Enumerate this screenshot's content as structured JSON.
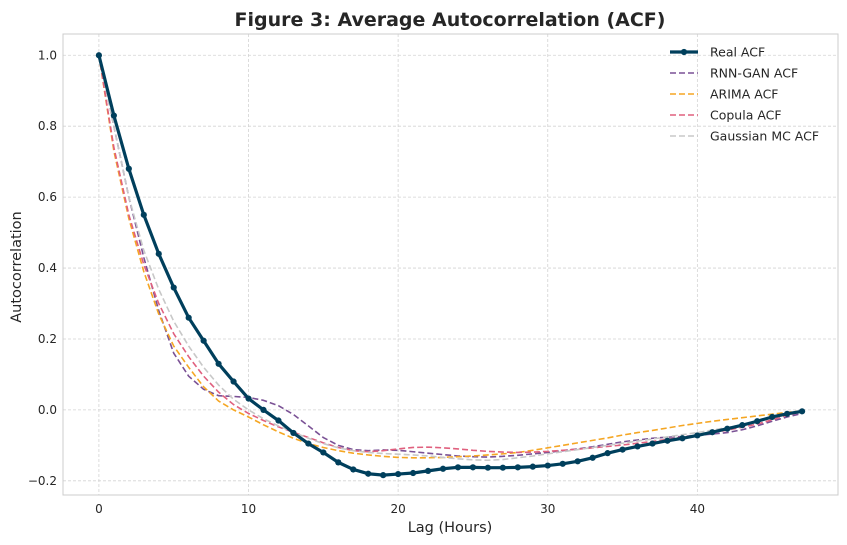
{
  "chart_data": {
    "type": "line",
    "title": "Figure 3: Average Autocorrelation (ACF)",
    "xlabel": "Lag (Hours)",
    "ylabel": "Autocorrelation",
    "xlim": [
      -2.4,
      49.4
    ],
    "ylim": [
      -0.24,
      1.06
    ],
    "xticks": [
      0,
      10,
      20,
      30,
      40
    ],
    "yticks": [
      -0.2,
      0.0,
      0.2,
      0.4,
      0.6,
      0.8,
      1.0
    ],
    "ytick_labels": [
      "−0.2",
      "0.0",
      "0.2",
      "0.4",
      "0.6",
      "0.8",
      "1.0"
    ],
    "grid": true,
    "legend_position": "top-right",
    "x": [
      0,
      1,
      2,
      3,
      4,
      5,
      6,
      7,
      8,
      9,
      10,
      11,
      12,
      13,
      14,
      15,
      16,
      17,
      18,
      19,
      20,
      21,
      22,
      23,
      24,
      25,
      26,
      27,
      28,
      29,
      30,
      31,
      32,
      33,
      34,
      35,
      36,
      37,
      38,
      39,
      40,
      41,
      42,
      43,
      44,
      45,
      46,
      47
    ],
    "series": [
      {
        "name": "Real ACF",
        "color": "#003f5c",
        "style": "solid-markers",
        "values": [
          1.0,
          0.83,
          0.68,
          0.55,
          0.44,
          0.345,
          0.26,
          0.195,
          0.13,
          0.08,
          0.032,
          0.0,
          -0.03,
          -0.065,
          -0.095,
          -0.12,
          -0.148,
          -0.168,
          -0.18,
          -0.184,
          -0.181,
          -0.178,
          -0.172,
          -0.166,
          -0.162,
          -0.162,
          -0.163,
          -0.163,
          -0.162,
          -0.16,
          -0.157,
          -0.152,
          -0.145,
          -0.135,
          -0.122,
          -0.112,
          -0.103,
          -0.095,
          -0.087,
          -0.08,
          -0.072,
          -0.063,
          -0.053,
          -0.043,
          -0.032,
          -0.02,
          -0.011,
          -0.004
        ]
      },
      {
        "name": "RNN-GAN ACF",
        "color": "#7a5195",
        "style": "dashed",
        "values": [
          1.0,
          0.8,
          0.6,
          0.43,
          0.28,
          0.16,
          0.095,
          0.058,
          0.04,
          0.038,
          0.035,
          0.027,
          0.012,
          -0.013,
          -0.045,
          -0.078,
          -0.1,
          -0.112,
          -0.115,
          -0.113,
          -0.114,
          -0.118,
          -0.122,
          -0.126,
          -0.13,
          -0.132,
          -0.133,
          -0.131,
          -0.128,
          -0.124,
          -0.12,
          -0.115,
          -0.11,
          -0.104,
          -0.097,
          -0.09,
          -0.085,
          -0.08,
          -0.077,
          -0.075,
          -0.072,
          -0.068,
          -0.064,
          -0.056,
          -0.045,
          -0.032,
          -0.02,
          -0.01
        ]
      },
      {
        "name": "ARIMA ACF",
        "color": "#f5a623",
        "style": "dashed",
        "values": [
          1.0,
          0.73,
          0.54,
          0.39,
          0.27,
          0.18,
          0.12,
          0.065,
          0.025,
          0.0,
          -0.02,
          -0.042,
          -0.062,
          -0.08,
          -0.095,
          -0.106,
          -0.115,
          -0.122,
          -0.127,
          -0.131,
          -0.134,
          -0.135,
          -0.135,
          -0.134,
          -0.132,
          -0.13,
          -0.127,
          -0.124,
          -0.12,
          -0.114,
          -0.107,
          -0.1,
          -0.093,
          -0.086,
          -0.079,
          -0.071,
          -0.064,
          -0.058,
          -0.051,
          -0.044,
          -0.038,
          -0.032,
          -0.027,
          -0.022,
          -0.017,
          -0.012,
          -0.007,
          -0.003
        ]
      },
      {
        "name": "Copula ACF",
        "color": "#e0607e",
        "style": "dashed",
        "values": [
          1.0,
          0.74,
          0.55,
          0.41,
          0.3,
          0.215,
          0.15,
          0.095,
          0.05,
          0.015,
          -0.01,
          -0.03,
          -0.048,
          -0.063,
          -0.078,
          -0.093,
          -0.106,
          -0.115,
          -0.118,
          -0.115,
          -0.11,
          -0.106,
          -0.105,
          -0.107,
          -0.11,
          -0.114,
          -0.117,
          -0.119,
          -0.12,
          -0.119,
          -0.117,
          -0.114,
          -0.111,
          -0.107,
          -0.103,
          -0.099,
          -0.094,
          -0.089,
          -0.083,
          -0.077,
          -0.071,
          -0.064,
          -0.057,
          -0.049,
          -0.04,
          -0.028,
          -0.015,
          -0.005
        ]
      },
      {
        "name": "Gaussian MC ACF",
        "color": "#c8c8c8",
        "style": "dashed",
        "values": [
          1.0,
          0.8,
          0.6,
          0.45,
          0.34,
          0.25,
          0.18,
          0.12,
          0.07,
          0.03,
          0.0,
          -0.025,
          -0.045,
          -0.063,
          -0.08,
          -0.095,
          -0.107,
          -0.115,
          -0.12,
          -0.123,
          -0.125,
          -0.127,
          -0.13,
          -0.134,
          -0.138,
          -0.141,
          -0.142,
          -0.14,
          -0.135,
          -0.13,
          -0.124,
          -0.118,
          -0.112,
          -0.106,
          -0.1,
          -0.094,
          -0.088,
          -0.082,
          -0.076,
          -0.07,
          -0.064,
          -0.057,
          -0.05,
          -0.042,
          -0.033,
          -0.023,
          -0.013,
          -0.004
        ]
      }
    ]
  }
}
